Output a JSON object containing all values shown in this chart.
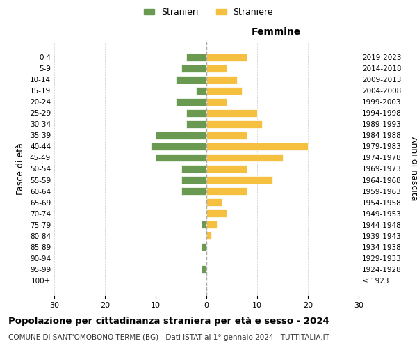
{
  "age_groups": [
    "100+",
    "95-99",
    "90-94",
    "85-89",
    "80-84",
    "75-79",
    "70-74",
    "65-69",
    "60-64",
    "55-59",
    "50-54",
    "45-49",
    "40-44",
    "35-39",
    "30-34",
    "25-29",
    "20-24",
    "15-19",
    "10-14",
    "5-9",
    "0-4"
  ],
  "birth_years": [
    "≤ 1923",
    "1924-1928",
    "1929-1933",
    "1934-1938",
    "1939-1943",
    "1944-1948",
    "1949-1953",
    "1954-1958",
    "1959-1963",
    "1964-1968",
    "1969-1973",
    "1974-1978",
    "1979-1983",
    "1984-1988",
    "1989-1993",
    "1994-1998",
    "1999-2003",
    "2004-2008",
    "2009-2013",
    "2014-2018",
    "2019-2023"
  ],
  "males": [
    0,
    1,
    0,
    1,
    0,
    1,
    0,
    0,
    5,
    5,
    5,
    10,
    11,
    10,
    4,
    4,
    6,
    2,
    6,
    5,
    4
  ],
  "females": [
    0,
    0,
    0,
    0,
    1,
    2,
    4,
    3,
    8,
    13,
    8,
    15,
    20,
    8,
    11,
    10,
    4,
    7,
    6,
    4,
    8
  ],
  "male_color": "#6a9a52",
  "female_color": "#f5c040",
  "center_line_color": "#aaaaaa",
  "grid_color": "#cccccc",
  "xlim": 30,
  "title": "Popolazione per cittadinanza straniera per età e sesso - 2024",
  "subtitle": "COMUNE DI SANT'OMOBONO TERME (BG) - Dati ISTAT al 1° gennaio 2024 - TUTTITALIA.IT",
  "femmine_label": "Femmine",
  "fasce_label": "Fasce di età",
  "anni_label": "Anni di nascita",
  "legend_male": "Stranieri",
  "legend_female": "Straniere",
  "bg_color": "#ffffff"
}
